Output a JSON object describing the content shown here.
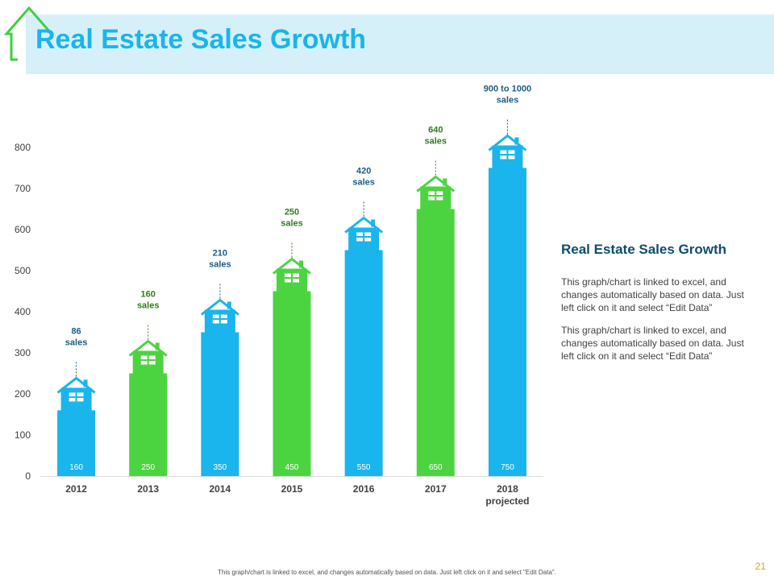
{
  "slide": {
    "title": "Real Estate Sales Growth",
    "side_title": "Real Estate Sales Growth",
    "side_paragraphs": [
      "This graph/chart is linked to excel, and changes automatically based on data. Just left click on it and select “Edit Data”",
      "This graph/chart is linked to excel, and changes automatically based on data. Just left click on it and select “Edit Data”"
    ],
    "footer": "This graph/chart is linked to excel, and changes automatically based on data. Just left click on it and select \"Edit Data\".",
    "page_number": "21"
  },
  "colors": {
    "blue": "#19b5ec",
    "green": "#4cd440",
    "title_band": "#d6f0fa",
    "logo": "#3fcf3f",
    "side_title": "#0f4d6b",
    "label_blue": "#1b5d86",
    "label_green": "#2e7d1f"
  },
  "chart_data": {
    "type": "bar",
    "title": "",
    "xlabel": "",
    "ylabel": "",
    "ylim": [
      0,
      800
    ],
    "yticks": [
      0,
      100,
      200,
      300,
      400,
      500,
      600,
      700,
      800
    ],
    "categories": [
      [
        "2012"
      ],
      [
        "2013"
      ],
      [
        "2014"
      ],
      [
        "2015"
      ],
      [
        "2016"
      ],
      [
        "2017"
      ],
      [
        "2018",
        "projected"
      ]
    ],
    "values": [
      160,
      250,
      350,
      450,
      550,
      650,
      750
    ],
    "bar_colors": [
      "blue",
      "green",
      "blue",
      "green",
      "blue",
      "green",
      "blue"
    ],
    "data_labels": [
      "160",
      "250",
      "350",
      "450",
      "550",
      "650",
      "750"
    ],
    "annotations": [
      [
        "86",
        "sales"
      ],
      [
        "160",
        "sales"
      ],
      [
        "210",
        "sales"
      ],
      [
        "250",
        "sales"
      ],
      [
        "420",
        "sales"
      ],
      [
        "640",
        "sales"
      ],
      [
        "900 to 1000",
        "sales"
      ]
    ],
    "grid": false,
    "legend": "none",
    "marker": "house-icon"
  }
}
